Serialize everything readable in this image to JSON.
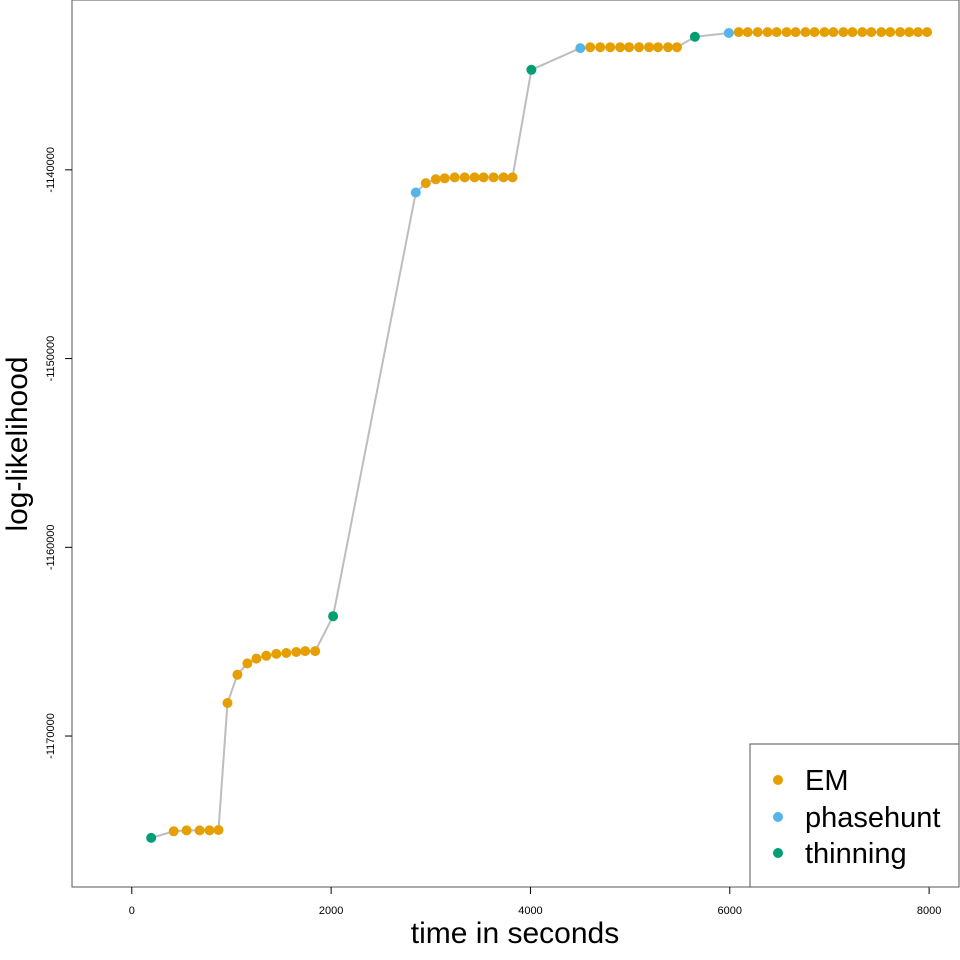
{
  "chart_data": {
    "type": "scatter",
    "title": "",
    "xlabel": "time in seconds",
    "ylabel": "log-likelihood",
    "xlim": [
      -600,
      8300
    ],
    "ylim": [
      -1178000,
      -1131000
    ],
    "x_ticks": [
      0,
      2000,
      4000,
      6000,
      8000
    ],
    "x_tick_labels": [
      "0",
      "2000",
      "4000",
      "6000",
      "8000"
    ],
    "y_ticks": [
      -1170000,
      -1160000,
      -1150000,
      -1140000
    ],
    "y_tick_labels": [
      "-1170000",
      "-1160000",
      "-1150000",
      "-1140000"
    ],
    "grid": false,
    "connecting_line_color": "#bdbdbd",
    "legend": {
      "position": "bottom-right",
      "entries": [
        {
          "label": "EM",
          "color": "#E69F00"
        },
        {
          "label": "phasehunt",
          "color": "#56B4E9"
        },
        {
          "label": "thinning",
          "color": "#009E73"
        }
      ]
    },
    "series": [
      {
        "name": "EM",
        "color": "#E69F00",
        "x": [],
        "y": []
      },
      {
        "name": "phasehunt",
        "color": "#56B4E9",
        "x": [],
        "y": []
      },
      {
        "name": "thinning",
        "color": "#009E73",
        "x": [],
        "y": []
      }
    ],
    "points": [
      {
        "x": 195,
        "y": -1175400,
        "type": "thinning"
      },
      {
        "x": 420,
        "y": -1175050,
        "type": "EM"
      },
      {
        "x": 550,
        "y": -1175000,
        "type": "EM"
      },
      {
        "x": 680,
        "y": -1175000,
        "type": "EM"
      },
      {
        "x": 780,
        "y": -1175000,
        "type": "EM"
      },
      {
        "x": 870,
        "y": -1174980,
        "type": "EM"
      },
      {
        "x": 960,
        "y": -1168250,
        "type": "EM"
      },
      {
        "x": 1060,
        "y": -1166750,
        "type": "EM"
      },
      {
        "x": 1160,
        "y": -1166150,
        "type": "EM"
      },
      {
        "x": 1250,
        "y": -1165900,
        "type": "EM"
      },
      {
        "x": 1350,
        "y": -1165750,
        "type": "EM"
      },
      {
        "x": 1450,
        "y": -1165650,
        "type": "EM"
      },
      {
        "x": 1550,
        "y": -1165600,
        "type": "EM"
      },
      {
        "x": 1650,
        "y": -1165550,
        "type": "EM"
      },
      {
        "x": 1740,
        "y": -1165500,
        "type": "EM"
      },
      {
        "x": 1840,
        "y": -1165500,
        "type": "EM"
      },
      {
        "x": 2020,
        "y": -1163650,
        "type": "thinning"
      },
      {
        "x": 2850,
        "y": -1141200,
        "type": "phasehunt"
      },
      {
        "x": 2950,
        "y": -1140700,
        "type": "EM"
      },
      {
        "x": 3050,
        "y": -1140500,
        "type": "EM"
      },
      {
        "x": 3140,
        "y": -1140450,
        "type": "EM"
      },
      {
        "x": 3240,
        "y": -1140400,
        "type": "EM"
      },
      {
        "x": 3340,
        "y": -1140400,
        "type": "EM"
      },
      {
        "x": 3440,
        "y": -1140400,
        "type": "EM"
      },
      {
        "x": 3530,
        "y": -1140400,
        "type": "EM"
      },
      {
        "x": 3630,
        "y": -1140400,
        "type": "EM"
      },
      {
        "x": 3730,
        "y": -1140400,
        "type": "EM"
      },
      {
        "x": 3820,
        "y": -1140400,
        "type": "EM"
      },
      {
        "x": 4010,
        "y": -1134700,
        "type": "thinning"
      },
      {
        "x": 4500,
        "y": -1133550,
        "type": "phasehunt"
      },
      {
        "x": 4600,
        "y": -1133500,
        "type": "EM"
      },
      {
        "x": 4700,
        "y": -1133500,
        "type": "EM"
      },
      {
        "x": 4800,
        "y": -1133500,
        "type": "EM"
      },
      {
        "x": 4900,
        "y": -1133500,
        "type": "EM"
      },
      {
        "x": 4990,
        "y": -1133500,
        "type": "EM"
      },
      {
        "x": 5090,
        "y": -1133500,
        "type": "EM"
      },
      {
        "x": 5190,
        "y": -1133500,
        "type": "EM"
      },
      {
        "x": 5280,
        "y": -1133500,
        "type": "EM"
      },
      {
        "x": 5380,
        "y": -1133500,
        "type": "EM"
      },
      {
        "x": 5470,
        "y": -1133500,
        "type": "EM"
      },
      {
        "x": 5650,
        "y": -1132950,
        "type": "thinning"
      },
      {
        "x": 5990,
        "y": -1132750,
        "type": "phasehunt"
      },
      {
        "x": 6090,
        "y": -1132700,
        "type": "EM"
      },
      {
        "x": 6180,
        "y": -1132700,
        "type": "EM"
      },
      {
        "x": 6280,
        "y": -1132700,
        "type": "EM"
      },
      {
        "x": 6380,
        "y": -1132700,
        "type": "EM"
      },
      {
        "x": 6470,
        "y": -1132700,
        "type": "EM"
      },
      {
        "x": 6570,
        "y": -1132700,
        "type": "EM"
      },
      {
        "x": 6660,
        "y": -1132700,
        "type": "EM"
      },
      {
        "x": 6760,
        "y": -1132700,
        "type": "EM"
      },
      {
        "x": 6850,
        "y": -1132700,
        "type": "EM"
      },
      {
        "x": 6950,
        "y": -1132700,
        "type": "EM"
      },
      {
        "x": 7040,
        "y": -1132700,
        "type": "EM"
      },
      {
        "x": 7140,
        "y": -1132700,
        "type": "EM"
      },
      {
        "x": 7230,
        "y": -1132700,
        "type": "EM"
      },
      {
        "x": 7330,
        "y": -1132700,
        "type": "EM"
      },
      {
        "x": 7420,
        "y": -1132700,
        "type": "EM"
      },
      {
        "x": 7520,
        "y": -1132700,
        "type": "EM"
      },
      {
        "x": 7610,
        "y": -1132700,
        "type": "EM"
      },
      {
        "x": 7710,
        "y": -1132700,
        "type": "EM"
      },
      {
        "x": 7800,
        "y": -1132700,
        "type": "EM"
      },
      {
        "x": 7890,
        "y": -1132700,
        "type": "EM"
      },
      {
        "x": 7980,
        "y": -1132700,
        "type": "EM"
      }
    ]
  }
}
